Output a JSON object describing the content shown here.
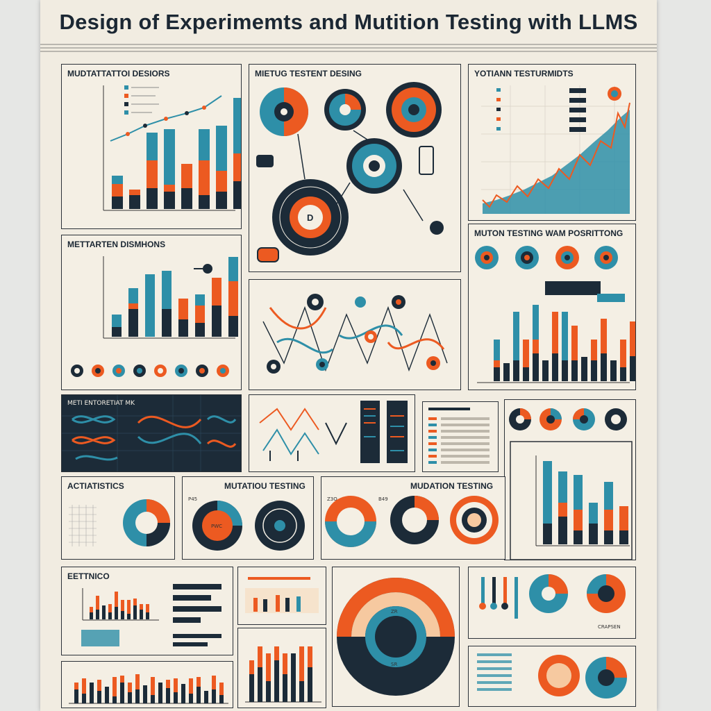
{
  "poster": {
    "title": "Design of Experimemts and Mutition Testing with LLMS"
  },
  "colors": {
    "navy": "#1c2b38",
    "teal": "#2e8fa8",
    "orange": "#ec5a21",
    "cream": "#f4efe4",
    "peach": "#f6c9a0"
  },
  "panels": {
    "p1": {
      "title": "MUDTATTATTOI DESIORS"
    },
    "p2": {
      "title": "MIETUG TESTENT DESING"
    },
    "p3": {
      "title": "YOTIANN TESTURMIDTS"
    },
    "p4": {
      "title": "METTARTEN DISMHONS"
    },
    "p5": {
      "title": "MUTON TESTING WAM POSRITTONG"
    },
    "p6": {
      "title": "METI ENTORETIAT MK"
    },
    "p7": {
      "title": "ACTIATISTICS"
    },
    "p8": {
      "title": "MUTATIOU TESTING"
    },
    "p9": {
      "title": "MUDATION TESTING"
    },
    "p10": {
      "title": "EETTNICO"
    }
  },
  "labels": {
    "center_d": "D",
    "donut_pwc": "PWC",
    "p8_num": "P45",
    "p9_num_left": "Z3Q",
    "p9_num_right": "B49",
    "big_donut_top": "ZR",
    "big_donut_bottom": "SR",
    "crapsen": "CRAPSEN"
  }
}
